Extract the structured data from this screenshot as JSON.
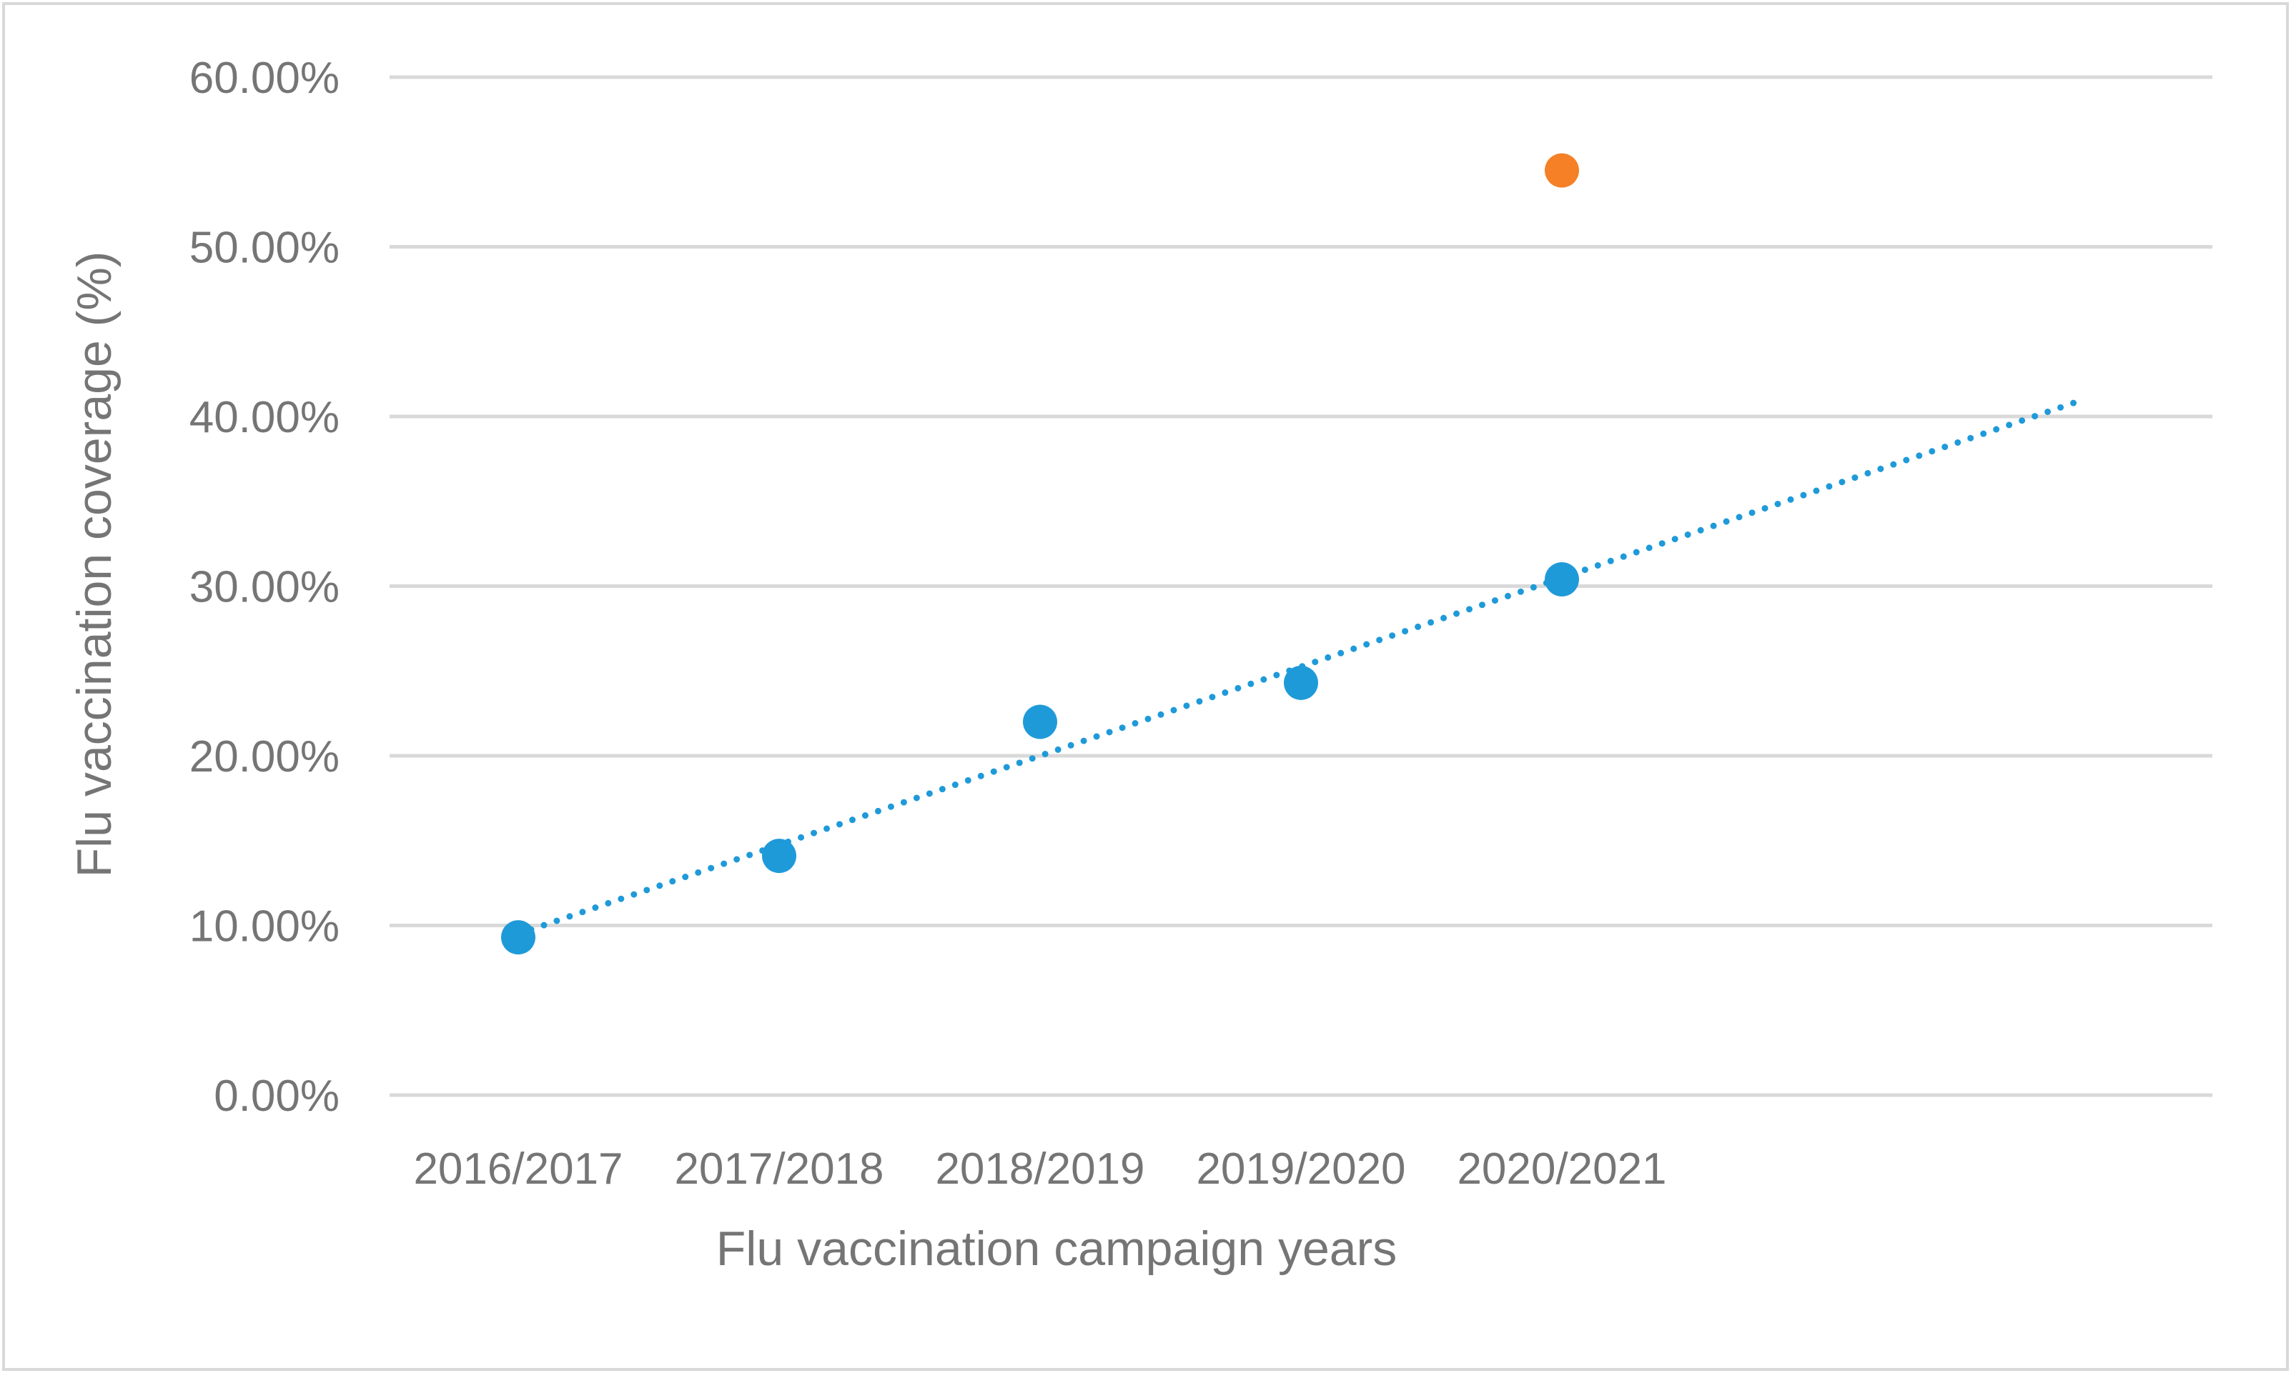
{
  "chart_data": {
    "type": "scatter",
    "title": "",
    "xlabel": "Flu vaccination campaign years",
    "ylabel": "Flu vaccination coverage (%)",
    "categories": [
      "2016/2017",
      "2017/2018",
      "2018/2019",
      "2019/2020",
      "2020/2021"
    ],
    "ylim": [
      0,
      0.6
    ],
    "y_ticks": [
      "0.00%",
      "10.00%",
      "20.00%",
      "30.00%",
      "40.00%",
      "50.00%",
      "60.00%"
    ],
    "grid": true,
    "series": [
      {
        "values": [
          0.093,
          0.141,
          0.22,
          0.243,
          0.304
        ],
        "color": "#1f9ad9"
      },
      {
        "values": [
          null,
          null,
          null,
          null,
          0.545
        ],
        "color": "#f58025"
      }
    ],
    "trendline": {
      "type": "linear",
      "style": "dotted",
      "color": "#1f9ad9",
      "x_from": 1,
      "x_to": 7,
      "y_from": 0.095,
      "y_to": 0.41
    }
  }
}
